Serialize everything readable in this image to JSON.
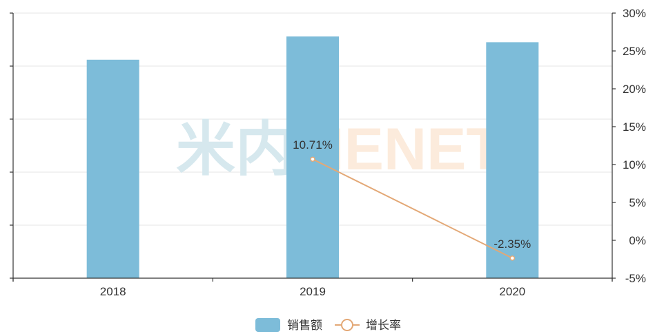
{
  "chart_data": {
    "type": "bar",
    "categories": [
      "2018",
      "2019",
      "2020"
    ],
    "series": [
      {
        "name": "销售额",
        "type": "bar",
        "axis": "left",
        "values": [
          4.12,
          4.56,
          4.45
        ],
        "color": "#7dbcd9"
      },
      {
        "name": "增长率",
        "type": "line",
        "axis": "right",
        "values": [
          null,
          10.71,
          -2.35
        ],
        "labels": [
          "",
          "10.71%",
          "-2.35%"
        ],
        "color": "#e3a876"
      }
    ],
    "y_left": {
      "ylim": [
        0,
        5
      ],
      "tick_labels": []
    },
    "y_right": {
      "ylim": [
        -5,
        30
      ],
      "tick_labels": [
        "-5%",
        "0%",
        "5%",
        "10%",
        "15%",
        "20%",
        "25%",
        "30%"
      ]
    },
    "grid": true,
    "legend_position": "bottom"
  },
  "watermark": {
    "part1": "米内",
    "part2": "MENET",
    "color1": "#d6e8ee",
    "color2": "#fcebdc"
  },
  "colors": {
    "axis": "#333333",
    "grid": "#e6e6e6",
    "text": "#333333"
  }
}
